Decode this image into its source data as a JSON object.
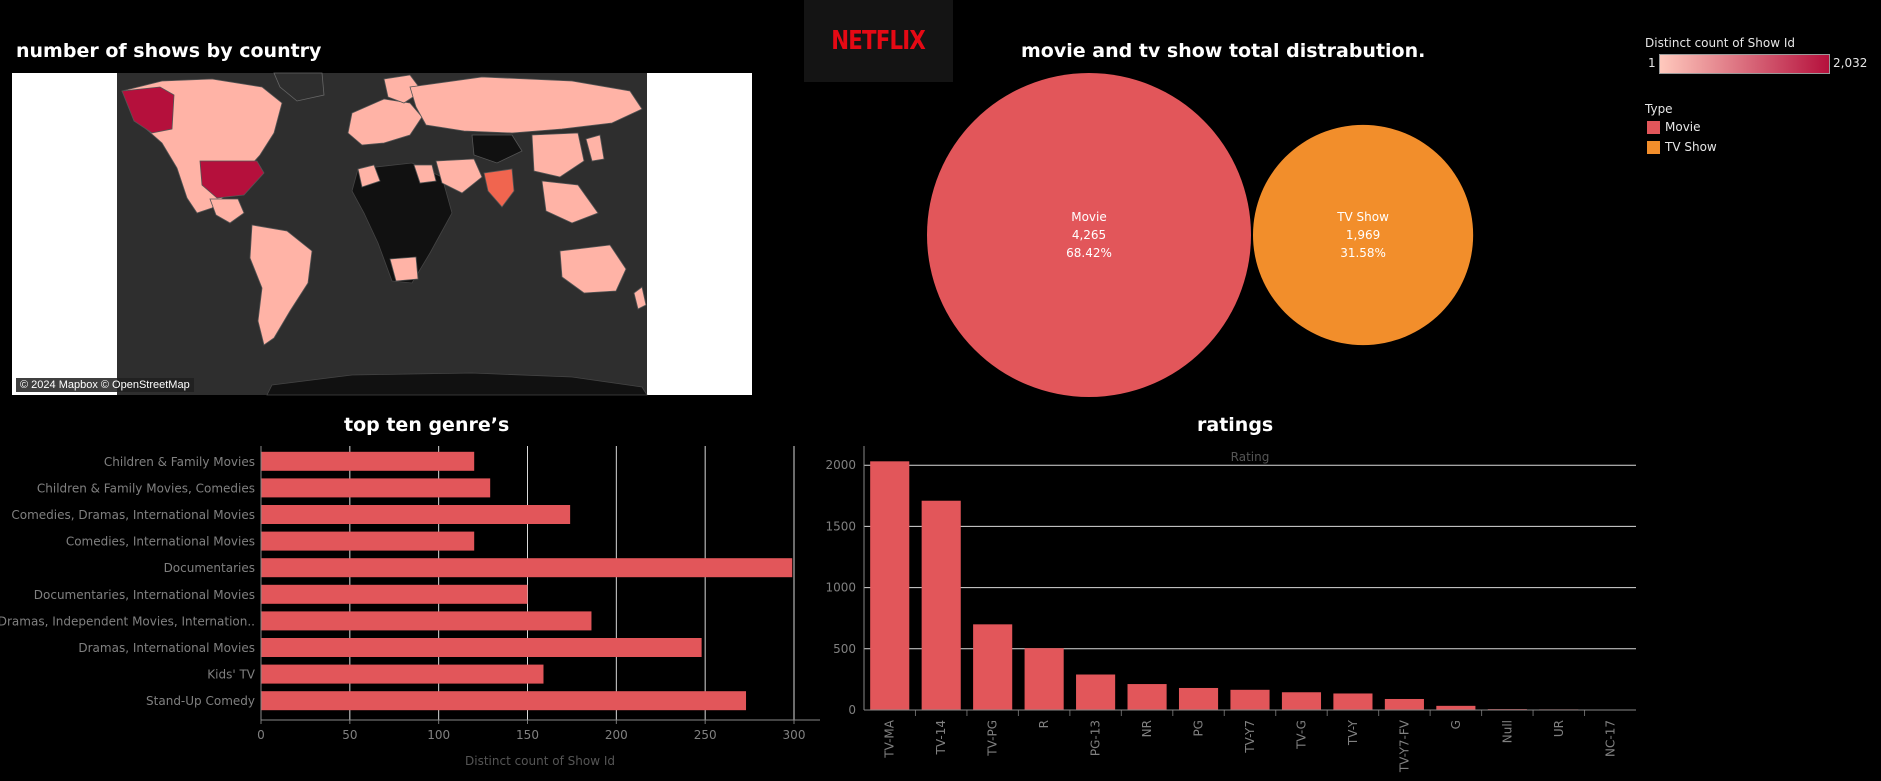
{
  "titles": {
    "map": "number of shows by country",
    "pie": "movie and tv show total distrabution.",
    "genre": "top ten genre’s",
    "ratings": "ratings"
  },
  "logo": {
    "text": "NETFLIX",
    "color": "#e50914"
  },
  "map": {
    "attribution": "© 2024 Mapbox © OpenStreetMap"
  },
  "legend": {
    "color_title": "Distinct count of Show Id",
    "min_label": "1",
    "max_label": "2,032",
    "gradient_start": "#ffc9bd",
    "gradient_end": "#b5103c",
    "type_title": "Type",
    "types": [
      {
        "label": "Movie",
        "color": "#e2565a"
      },
      {
        "label": "TV Show",
        "color": "#f28e2b"
      }
    ]
  },
  "chart_data": [
    {
      "type": "bubble",
      "title": "movie and tv show total distrabution.",
      "items": [
        {
          "label": "Movie",
          "value": 4265,
          "value_label": "4,265",
          "percent_label": "68.42%",
          "color": "#e2565a"
        },
        {
          "label": "TV Show",
          "value": 1969,
          "value_label": "1,969",
          "percent_label": "31.58%",
          "color": "#f28e2b"
        }
      ]
    },
    {
      "type": "bar",
      "orientation": "horizontal",
      "title": "top ten genre’s",
      "xlabel": "Distinct count of Show Id",
      "xlim": [
        0,
        300
      ],
      "xticks": [
        0,
        50,
        100,
        150,
        200,
        250,
        300
      ],
      "color": "#e2565a",
      "categories": [
        "Children & Family Movies",
        "Children & Family Movies, Comedies",
        "Comedies, Dramas, International Movies",
        "Comedies, International Movies",
        "Documentaries",
        "Documentaries, International Movies",
        "Dramas, Independent Movies, Internation..",
        "Dramas, International Movies",
        "Kids' TV",
        "Stand-Up Comedy"
      ],
      "values": [
        120,
        129,
        174,
        120,
        299,
        150,
        186,
        248,
        159,
        273
      ]
    },
    {
      "type": "bar",
      "orientation": "vertical",
      "title": "ratings",
      "xlabel": "Rating",
      "ylim": [
        0,
        2100
      ],
      "yticks": [
        0,
        500,
        1000,
        1500,
        2000
      ],
      "color": "#e2565a",
      "categories": [
        "TV-MA",
        "TV-14",
        "TV-PG",
        "R",
        "PG-13",
        "NR",
        "PG",
        "TV-Y7",
        "TV-G",
        "TV-Y",
        "TV-Y7-FV",
        "G",
        "Null",
        "UR",
        "NC-17"
      ],
      "values": [
        2032,
        1710,
        700,
        505,
        290,
        212,
        180,
        165,
        145,
        135,
        90,
        34,
        7,
        5,
        3
      ]
    }
  ]
}
